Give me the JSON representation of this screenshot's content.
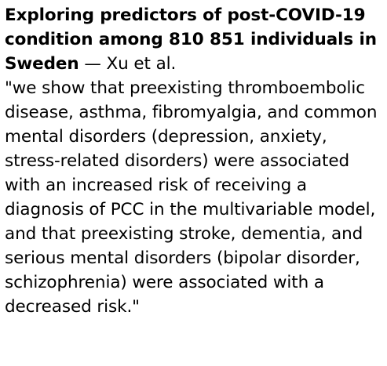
{
  "citation": {
    "title": "Exploring predictors of post-COVID-19 condition among 810 851 individuals in Sweden",
    "separator": " — ",
    "authors": "Xu et al."
  },
  "quote": "\"we show that preexisting thromboembolic disease, asthma, fibromyalgia, and common mental disorders (depression, anxiety, stress-related disorders) were associated with an increased risk of receiving a diagnosis of PCC in the multivariable model, and that preexisting stroke, dementia, and serious mental disorders (bipolar disorder, schizophrenia) were associated with a decreased risk.\""
}
